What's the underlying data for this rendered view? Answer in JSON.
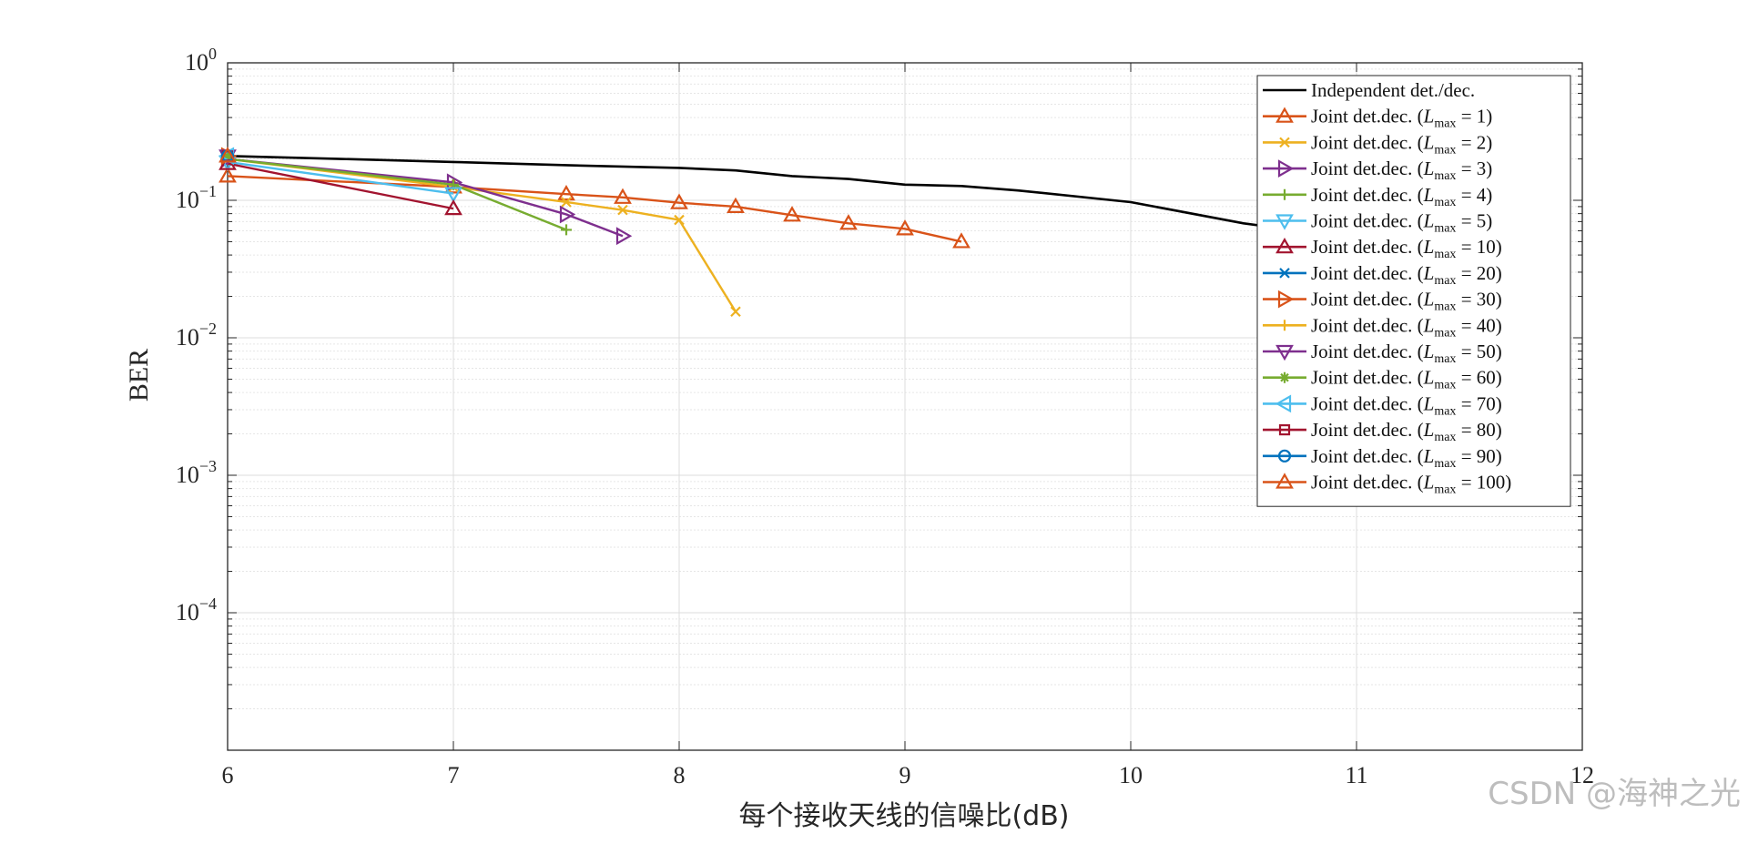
{
  "watermark": "CSDN @海神之光",
  "chart_data": {
    "type": "line",
    "title": "",
    "xlabel": "每个接收天线的信噪比(dB)",
    "ylabel": "BER",
    "xlim": [
      6,
      12
    ],
    "ylim": [
      1e-05,
      1
    ],
    "yscale": "log",
    "grid": true,
    "legend_position": "top-right",
    "xticks": [
      "6",
      "7",
      "8",
      "9",
      "10",
      "11",
      "12"
    ],
    "yticks": [
      {
        "base": "10",
        "exp": "0",
        "value": 1
      },
      {
        "base": "10",
        "exp": "−1",
        "value": 0.1
      },
      {
        "base": "10",
        "exp": "−2",
        "value": 0.01
      },
      {
        "base": "10",
        "exp": "−3",
        "value": 0.001
      },
      {
        "base": "10",
        "exp": "−4",
        "value": 0.0001
      }
    ],
    "series": [
      {
        "name": "Independent det./dec.",
        "color": "#000000",
        "marker": "none",
        "x": [
          6,
          6.5,
          7,
          7.5,
          8,
          8.25,
          8.5,
          8.75,
          9,
          9.25,
          9.5,
          10,
          10.5,
          10.75
        ],
        "y": [
          0.21,
          0.2,
          0.19,
          0.18,
          0.172,
          0.165,
          0.15,
          0.143,
          0.13,
          0.127,
          0.118,
          0.097,
          0.068,
          0.06
        ]
      },
      {
        "name": "Joint det.dec. (",
        "sub": "max",
        "val": "1",
        "color": "#D95319",
        "marker": "triangle-up",
        "x": [
          6,
          7,
          7.5,
          7.75,
          8,
          8.25,
          8.5,
          8.75,
          9,
          9.25
        ],
        "y": [
          0.15,
          0.125,
          0.111,
          0.105,
          0.096,
          0.09,
          0.078,
          0.068,
          0.062,
          0.05
        ]
      },
      {
        "name": "Joint det.dec. (",
        "sub": "max",
        "val": "2",
        "color": "#EDB120",
        "marker": "x",
        "x": [
          6,
          7,
          7.5,
          7.75,
          8,
          8.25
        ],
        "y": [
          0.2,
          0.125,
          0.097,
          0.085,
          0.072,
          0.0155
        ]
      },
      {
        "name": "Joint det.dec. (",
        "sub": "max",
        "val": "3",
        "color": "#7E2F8E",
        "marker": "triangle-right",
        "x": [
          6,
          7,
          7.5,
          7.75
        ],
        "y": [
          0.2,
          0.135,
          0.079,
          0.055
        ]
      },
      {
        "name": "Joint det.dec. (",
        "sub": "max",
        "val": "4",
        "color": "#77AC30",
        "marker": "plus",
        "x": [
          6,
          7,
          7.5
        ],
        "y": [
          0.2,
          0.13,
          0.061
        ]
      },
      {
        "name": "Joint det.dec. (",
        "sub": "max",
        "val": "5",
        "color": "#4DBEEE",
        "marker": "triangle-down",
        "x": [
          6,
          7
        ],
        "y": [
          0.19,
          0.112
        ]
      },
      {
        "name": "Joint det.dec. (",
        "sub": "max",
        "val": "10",
        "color": "#A2142F",
        "marker": "triangle-up",
        "x": [
          6,
          7
        ],
        "y": [
          0.185,
          0.087
        ]
      },
      {
        "name": "Joint det.dec. (",
        "sub": "max",
        "val": "20",
        "color": "#0072BD",
        "marker": "x",
        "x": [
          6
        ],
        "y": [
          0.21
        ]
      },
      {
        "name": "Joint det.dec. (",
        "sub": "max",
        "val": "30",
        "color": "#D95319",
        "marker": "triangle-right",
        "x": [
          6
        ],
        "y": [
          0.21
        ]
      },
      {
        "name": "Joint det.dec. (",
        "sub": "max",
        "val": "40",
        "color": "#EDB120",
        "marker": "plus",
        "x": [
          6
        ],
        "y": [
          0.21
        ]
      },
      {
        "name": "Joint det.dec. (",
        "sub": "max",
        "val": "50",
        "color": "#7E2F8E",
        "marker": "triangle-down",
        "x": [
          6
        ],
        "y": [
          0.21
        ]
      },
      {
        "name": "Joint det.dec. (",
        "sub": "max",
        "val": "60",
        "color": "#77AC30",
        "marker": "star",
        "x": [
          6
        ],
        "y": [
          0.21
        ]
      },
      {
        "name": "Joint det.dec. (",
        "sub": "max",
        "val": "70",
        "color": "#4DBEEE",
        "marker": "triangle-left",
        "x": [
          6
        ],
        "y": [
          0.21
        ]
      },
      {
        "name": "Joint det.dec. (",
        "sub": "max",
        "val": "80",
        "color": "#A2142F",
        "marker": "square",
        "x": [
          6
        ],
        "y": [
          0.21
        ]
      },
      {
        "name": "Joint det.dec. (",
        "sub": "max",
        "val": "90",
        "color": "#0072BD",
        "marker": "circle",
        "x": [
          6
        ],
        "y": [
          0.21
        ]
      },
      {
        "name": "Joint det.dec. (",
        "sub": "max",
        "val": "100",
        "color": "#D95319",
        "marker": "triangle-up",
        "x": [
          6
        ],
        "y": [
          0.21
        ]
      }
    ]
  }
}
